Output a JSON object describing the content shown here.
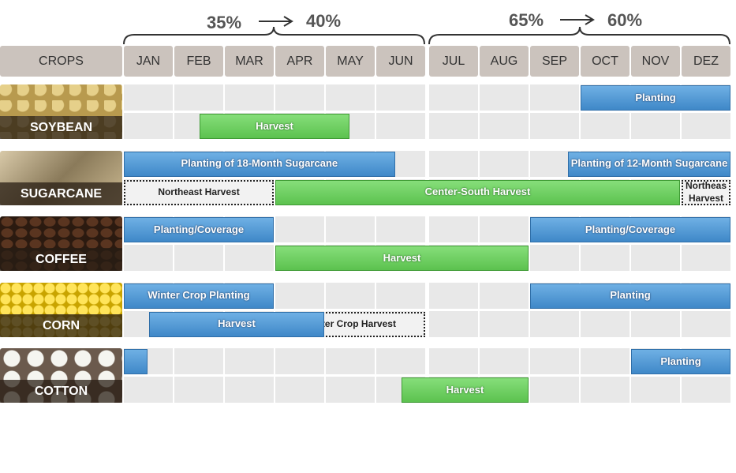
{
  "percent_labels": {
    "first_half": [
      "35%",
      "40%"
    ],
    "second_half": [
      "65%",
      "60%"
    ]
  },
  "header": {
    "crops": "CROPS",
    "months": [
      "JAN",
      "FEB",
      "MAR",
      "APR",
      "MAY",
      "JUN",
      "JUL",
      "AUG",
      "SEP",
      "OCT",
      "NOV",
      "DEZ"
    ]
  },
  "crops": [
    {
      "name": "SOYBEAN",
      "bars": [
        {
          "row": 0,
          "style": "planting",
          "start": 9,
          "end": 12,
          "label": "Planting"
        },
        {
          "row": 1,
          "style": "harvest",
          "start": 1.5,
          "end": 4.5,
          "label": "Harvest"
        }
      ]
    },
    {
      "name": "SUGARCANE",
      "bars": [
        {
          "row": 0,
          "style": "planting",
          "start": 0,
          "end": 5.4,
          "label": "Planting of 18-Month Sugarcane"
        },
        {
          "row": 0,
          "style": "planting",
          "start": 8.75,
          "end": 12,
          "label": "Planting of 12-Month Sugarcane"
        },
        {
          "row": 1,
          "style": "dotted",
          "start": 0,
          "end": 3,
          "label": "Northeast Harvest"
        },
        {
          "row": 1,
          "style": "harvest",
          "start": 3,
          "end": 11,
          "label": "Center-South Harvest"
        },
        {
          "row": 1,
          "style": "dotted",
          "start": 11,
          "end": 12,
          "label": "Northeas Harvest"
        }
      ]
    },
    {
      "name": "COFFEE",
      "bars": [
        {
          "row": 0,
          "style": "planting",
          "start": 0,
          "end": 3,
          "label": "Planting/Coverage"
        },
        {
          "row": 0,
          "style": "planting",
          "start": 8,
          "end": 12,
          "label": "Planting/Coverage"
        },
        {
          "row": 1,
          "style": "harvest",
          "start": 3,
          "end": 8,
          "label": "Harvest"
        }
      ]
    },
    {
      "name": "CORN",
      "bars": [
        {
          "row": 0,
          "style": "planting",
          "start": 0,
          "end": 3,
          "label": "Winter Crop Planting"
        },
        {
          "row": 0,
          "style": "planting",
          "start": 8,
          "end": 12,
          "label": "Planting"
        },
        {
          "row": 1,
          "style": "dotted",
          "start": 3,
          "end": 6,
          "label": "Winter Crop Harvest"
        },
        {
          "row": 1,
          "style": "planting",
          "start": 0.5,
          "end": 4,
          "label": "Harvest"
        }
      ]
    },
    {
      "name": "COTTON",
      "bars": [
        {
          "row": 0,
          "style": "planting",
          "start": 0,
          "end": 0.5
        },
        {
          "row": 0,
          "style": "planting",
          "start": 10,
          "end": 12,
          "label": "Planting"
        },
        {
          "row": 1,
          "style": "harvest",
          "start": 5.5,
          "end": 8,
          "label": "Harvest"
        }
      ]
    }
  ]
}
